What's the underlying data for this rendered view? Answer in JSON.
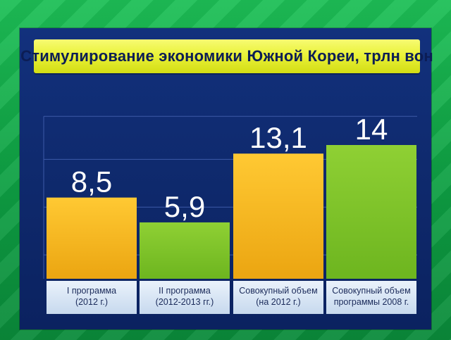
{
  "chart_data": {
    "type": "bar",
    "title": "Стимулирование экономики Южной Кореи, трлн вон",
    "categories": [
      [
        "I программа",
        "(2012 г.)"
      ],
      [
        "II программа",
        "(2012-2013 гг.)"
      ],
      [
        "Совокупный объем",
        "(на 2012 г.)"
      ],
      [
        "Совокупный объем",
        "программы 2008 г."
      ]
    ],
    "values": [
      8.5,
      5.9,
      13.1,
      14
    ],
    "value_labels": [
      "8,5",
      "5,9",
      "13,1",
      "14"
    ],
    "ylim": [
      0,
      18
    ],
    "grid": true,
    "colors": {
      "yellow": "#f5b61c",
      "green": "#7cc42a",
      "axis_box": "#cfe0f4"
    },
    "bar_colors": [
      "yellow",
      "green",
      "yellow",
      "green"
    ]
  }
}
